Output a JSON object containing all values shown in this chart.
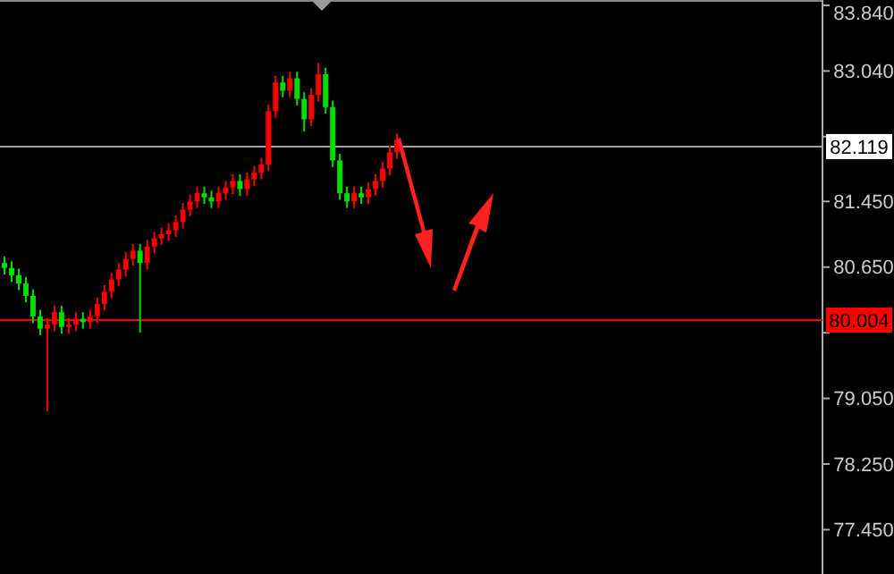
{
  "chart_data": {
    "type": "candlestick",
    "categories": [
      null,
      null,
      null,
      null,
      null,
      null,
      null,
      null,
      null,
      null,
      null,
      null,
      null,
      null,
      null,
      null,
      null,
      null,
      null,
      null,
      null,
      null,
      null,
      null,
      null,
      null,
      null,
      null,
      null,
      null,
      null,
      null,
      null,
      null,
      null,
      null,
      null,
      null,
      null,
      null,
      null,
      null,
      null,
      null,
      null,
      null,
      null,
      null,
      null,
      null,
      null,
      null,
      null,
      null,
      null,
      null,
      null,
      null,
      null,
      null,
      null,
      null,
      null,
      null,
      null,
      null,
      null,
      null,
      null,
      null,
      null,
      null,
      null,
      null,
      null,
      null,
      null,
      null,
      null,
      null,
      null,
      null,
      null,
      null,
      null,
      null,
      null,
      null,
      null,
      null,
      null,
      null,
      null,
      null,
      null,
      null,
      null,
      null,
      null,
      null,
      null,
      null,
      null,
      null,
      null,
      null,
      null,
      null,
      null,
      null,
      null,
      null,
      null,
      null,
      null
    ],
    "ohlc": [
      [
        80.7,
        80.78,
        80.56,
        80.64
      ],
      [
        80.64,
        80.72,
        80.47,
        80.55
      ],
      [
        80.55,
        80.63,
        80.37,
        80.45
      ],
      [
        80.45,
        80.53,
        80.22,
        80.3
      ],
      [
        80.3,
        80.38,
        79.97,
        80.05
      ],
      [
        80.05,
        80.13,
        79.82,
        79.9
      ],
      [
        79.9,
        80.03,
        78.89,
        79.95
      ],
      [
        79.95,
        80.18,
        79.87,
        80.1
      ],
      [
        80.1,
        80.18,
        79.84,
        79.92
      ],
      [
        79.92,
        80.03,
        79.84,
        79.95
      ],
      [
        79.95,
        80.1,
        79.87,
        80.02
      ],
      [
        80.02,
        80.1,
        79.9,
        79.98
      ],
      [
        79.98,
        80.13,
        79.9,
        80.05
      ],
      [
        80.05,
        80.28,
        79.97,
        80.2
      ],
      [
        80.2,
        80.43,
        80.12,
        80.35
      ],
      [
        80.35,
        80.58,
        80.27,
        80.5
      ],
      [
        80.5,
        80.7,
        80.42,
        80.62
      ],
      [
        80.62,
        80.83,
        80.54,
        80.75
      ],
      [
        80.75,
        80.93,
        80.67,
        80.85
      ],
      [
        80.85,
        80.93,
        79.85,
        80.7
      ],
      [
        80.7,
        80.98,
        80.62,
        80.9
      ],
      [
        80.9,
        81.08,
        80.82,
        81.0
      ],
      [
        81.0,
        81.13,
        80.92,
        81.05
      ],
      [
        81.05,
        81.18,
        80.97,
        81.1
      ],
      [
        81.1,
        81.28,
        81.02,
        81.2
      ],
      [
        81.2,
        81.43,
        81.12,
        81.35
      ],
      [
        81.35,
        81.53,
        81.27,
        81.45
      ],
      [
        81.45,
        81.63,
        81.37,
        81.55
      ],
      [
        81.55,
        81.63,
        81.42,
        81.5
      ],
      [
        81.5,
        81.58,
        81.37,
        81.45
      ],
      [
        81.45,
        81.63,
        81.37,
        81.55
      ],
      [
        81.55,
        81.7,
        81.47,
        81.62
      ],
      [
        81.62,
        81.78,
        81.54,
        81.7
      ],
      [
        81.7,
        81.78,
        81.52,
        81.6
      ],
      [
        81.6,
        81.8,
        81.52,
        81.72
      ],
      [
        81.72,
        81.88,
        81.64,
        81.8
      ],
      [
        81.8,
        81.98,
        81.72,
        81.9
      ],
      [
        81.9,
        82.63,
        81.82,
        82.55
      ],
      [
        82.55,
        82.98,
        82.47,
        82.9
      ],
      [
        82.9,
        82.98,
        82.72,
        82.8
      ],
      [
        82.8,
        83.03,
        82.72,
        82.95
      ],
      [
        82.95,
        83.03,
        82.62,
        82.7
      ],
      [
        82.7,
        82.78,
        82.3,
        82.45
      ],
      [
        82.45,
        82.83,
        82.37,
        82.75
      ],
      [
        82.75,
        83.14,
        82.67,
        83.0
      ],
      [
        83.0,
        83.08,
        82.52,
        82.6
      ],
      [
        82.6,
        82.68,
        81.87,
        81.95
      ],
      [
        81.95,
        82.03,
        81.47,
        81.55
      ],
      [
        81.55,
        81.63,
        81.37,
        81.45
      ],
      [
        81.45,
        81.63,
        81.37,
        81.55
      ],
      [
        81.55,
        81.63,
        81.42,
        81.5
      ],
      [
        81.5,
        81.68,
        81.42,
        81.6
      ],
      [
        81.6,
        81.78,
        81.52,
        81.7
      ],
      [
        81.7,
        81.93,
        81.62,
        81.85
      ],
      [
        81.85,
        82.13,
        81.77,
        82.05
      ],
      [
        82.05,
        82.28,
        81.97,
        82.2
      ],
      null,
      null,
      null,
      null,
      null,
      null,
      null,
      null,
      null,
      null,
      null,
      null,
      null,
      null,
      null,
      null,
      null,
      null,
      null,
      null,
      null,
      null,
      null,
      null,
      null,
      null,
      null,
      null,
      null,
      null,
      null,
      null,
      null,
      null,
      null,
      null,
      null,
      null,
      null,
      null,
      null,
      null,
      null,
      null,
      null,
      null,
      null,
      null,
      null,
      null,
      null,
      null,
      null,
      null,
      null,
      null,
      null,
      null,
      null
    ],
    "colors": [
      "#00e000",
      "#00e000",
      "#00e000",
      "#00e000",
      "#00e000",
      "#00e000",
      "#ff0000",
      "#ff0000",
      "#00e000",
      "#ff0000",
      "#ff0000",
      "#00e000",
      "#ff0000",
      "#ff0000",
      "#ff0000",
      "#ff0000",
      "#ff0000",
      "#ff0000",
      "#ff0000",
      "#00e000",
      "#ff0000",
      "#ff0000",
      "#ff0000",
      "#ff0000",
      "#ff0000",
      "#ff0000",
      "#ff0000",
      "#ff0000",
      "#00e000",
      "#00e000",
      "#ff0000",
      "#ff0000",
      "#ff0000",
      "#00e000",
      "#ff0000",
      "#ff0000",
      "#ff0000",
      "#ff0000",
      "#ff0000",
      "#00e000",
      "#ff0000",
      "#00e000",
      "#00e000",
      "#ff0000",
      "#ff0000",
      "#00e000",
      "#00e000",
      "#00e000",
      "#00e000",
      "#ff0000",
      "#00e000",
      "#ff0000",
      "#ff0000",
      "#ff0000",
      "#ff0000",
      "#ff0000",
      null,
      null,
      null,
      null,
      null,
      null,
      null,
      null,
      null,
      null,
      null,
      null,
      null,
      null,
      null,
      null,
      null,
      null,
      null,
      null,
      null,
      null,
      null,
      null,
      null,
      null,
      null,
      null,
      null,
      null,
      null,
      null,
      null,
      null,
      null,
      null,
      null,
      null,
      null,
      null,
      null,
      null,
      null,
      null,
      null,
      null,
      null,
      null,
      null,
      null,
      null,
      null,
      null,
      null,
      null,
      null,
      null,
      null,
      null
    ],
    "ylim": [
      76.91,
      83.905
    ],
    "yticks": [
      {
        "value": 83.84,
        "label": "83.840"
      },
      {
        "value": 83.04,
        "label": "83.040"
      },
      {
        "value": 82.24,
        "label": null
      },
      {
        "value": 81.45,
        "label": "81.450"
      },
      {
        "value": 80.65,
        "label": "80.650"
      },
      {
        "value": 79.85,
        "label": null
      },
      {
        "value": 79.05,
        "label": "79.050"
      },
      {
        "value": 78.25,
        "label": "78.250"
      },
      {
        "value": 77.45,
        "label": "77.450"
      }
    ],
    "ref_lines": [
      {
        "axis": "y",
        "value": 82.119,
        "label": "82.119",
        "color": "#a0a0a0"
      },
      {
        "axis": "y",
        "value": 80.004,
        "label": "80.004",
        "color": "#ff0000"
      }
    ],
    "grid": false,
    "legend": false
  }
}
